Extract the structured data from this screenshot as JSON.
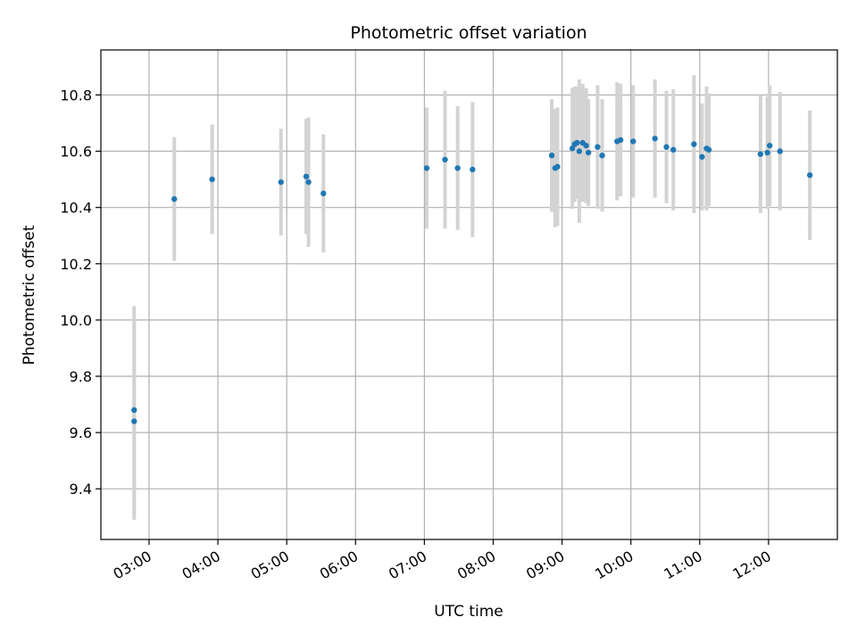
{
  "chart_data": {
    "type": "scatter",
    "title": "Photometric offset variation",
    "xlabel": "UTC time",
    "ylabel": "Photometric offset",
    "x_axis": "time (UTC, HH:MM)",
    "xlim": [
      "02:18",
      "13:00"
    ],
    "ylim": [
      9.22,
      10.96
    ],
    "grid": true,
    "x_ticks": [
      "03:00",
      "04:00",
      "05:00",
      "06:00",
      "07:00",
      "08:00",
      "09:00",
      "10:00",
      "11:00",
      "12:00"
    ],
    "y_ticks": [
      9.4,
      9.6,
      9.8,
      10.0,
      10.2,
      10.4,
      10.6,
      10.8
    ],
    "point_color": "#1f77b4",
    "errorbar_color": "#d3d3d3",
    "series": [
      {
        "points": [
          {
            "t": "02:47",
            "y": 9.68,
            "err": 0.37
          },
          {
            "t": "02:47",
            "y": 9.64,
            "err": 0.35
          },
          {
            "t": "03:22",
            "y": 10.43,
            "err": 0.22
          },
          {
            "t": "03:55",
            "y": 10.5,
            "err": 0.195
          },
          {
            "t": "04:55",
            "y": 10.49,
            "err": 0.19
          },
          {
            "t": "05:17",
            "y": 10.51,
            "err": 0.205
          },
          {
            "t": "05:19",
            "y": 10.49,
            "err": 0.23
          },
          {
            "t": "05:32",
            "y": 10.45,
            "err": 0.21
          },
          {
            "t": "07:02",
            "y": 10.54,
            "err": 0.215
          },
          {
            "t": "07:18",
            "y": 10.57,
            "err": 0.245
          },
          {
            "t": "07:29",
            "y": 10.54,
            "err": 0.22
          },
          {
            "t": "07:42",
            "y": 10.535,
            "err": 0.24
          },
          {
            "t": "08:51",
            "y": 10.585,
            "err": 0.2
          },
          {
            "t": "08:54",
            "y": 10.54,
            "err": 0.21
          },
          {
            "t": "08:56",
            "y": 10.545,
            "err": 0.21
          },
          {
            "t": "09:09",
            "y": 10.61,
            "err": 0.215
          },
          {
            "t": "09:11",
            "y": 10.625,
            "err": 0.205
          },
          {
            "t": "09:13",
            "y": 10.63,
            "err": 0.2
          },
          {
            "t": "09:15",
            "y": 10.6,
            "err": 0.255
          },
          {
            "t": "09:18",
            "y": 10.63,
            "err": 0.21
          },
          {
            "t": "09:21",
            "y": 10.62,
            "err": 0.205
          },
          {
            "t": "09:23",
            "y": 10.595,
            "err": 0.19
          },
          {
            "t": "09:31",
            "y": 10.615,
            "err": 0.22
          },
          {
            "t": "09:35",
            "y": 10.585,
            "err": 0.2
          },
          {
            "t": "09:48",
            "y": 10.635,
            "err": 0.21
          },
          {
            "t": "09:51",
            "y": 10.64,
            "err": 0.2
          },
          {
            "t": "10:02",
            "y": 10.635,
            "err": 0.2
          },
          {
            "t": "10:21",
            "y": 10.645,
            "err": 0.21
          },
          {
            "t": "10:31",
            "y": 10.615,
            "err": 0.2
          },
          {
            "t": "10:37",
            "y": 10.605,
            "err": 0.215
          },
          {
            "t": "10:55",
            "y": 10.625,
            "err": 0.245
          },
          {
            "t": "11:02",
            "y": 10.58,
            "err": 0.19
          },
          {
            "t": "11:06",
            "y": 10.61,
            "err": 0.22
          },
          {
            "t": "11:08",
            "y": 10.605,
            "err": 0.2
          },
          {
            "t": "11:53",
            "y": 10.59,
            "err": 0.21
          },
          {
            "t": "11:59",
            "y": 10.595,
            "err": 0.2
          },
          {
            "t": "12:01",
            "y": 10.62,
            "err": 0.215
          },
          {
            "t": "12:10",
            "y": 10.6,
            "err": 0.21
          },
          {
            "t": "12:36",
            "y": 10.515,
            "err": 0.23
          }
        ]
      }
    ]
  }
}
